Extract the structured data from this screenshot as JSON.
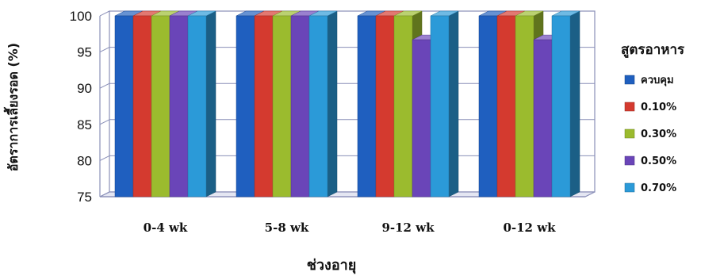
{
  "chart_data": {
    "type": "bar",
    "title": "",
    "xlabel": "ช่วงอายุ",
    "ylabel": "อัตราการเลี้ยงรอด (%)",
    "ylim": [
      75,
      100
    ],
    "yticks": [
      75,
      80,
      85,
      90,
      95,
      100
    ],
    "categories": [
      "0-4 wk",
      "5-8 wk",
      "9-12 wk",
      "0-12 wk"
    ],
    "legend_title": "สูตรอาหาร",
    "legend_position": "right",
    "grid": true,
    "style": "3d",
    "series": [
      {
        "name": "ควบคุม",
        "color": "#1f5fbf",
        "values": [
          100,
          100,
          100,
          100
        ]
      },
      {
        "name": "0.10%",
        "color": "#d43a2f",
        "values": [
          100,
          100,
          100,
          100
        ]
      },
      {
        "name": "0.30%",
        "color": "#9bbb2e",
        "values": [
          100,
          100,
          100,
          100
        ]
      },
      {
        "name": "0.50%",
        "color": "#6a45b8",
        "values": [
          100,
          100,
          96.7,
          96.7
        ]
      },
      {
        "name": "0.70%",
        "color": "#2b9ad8",
        "values": [
          100,
          100,
          100,
          100
        ]
      }
    ]
  }
}
